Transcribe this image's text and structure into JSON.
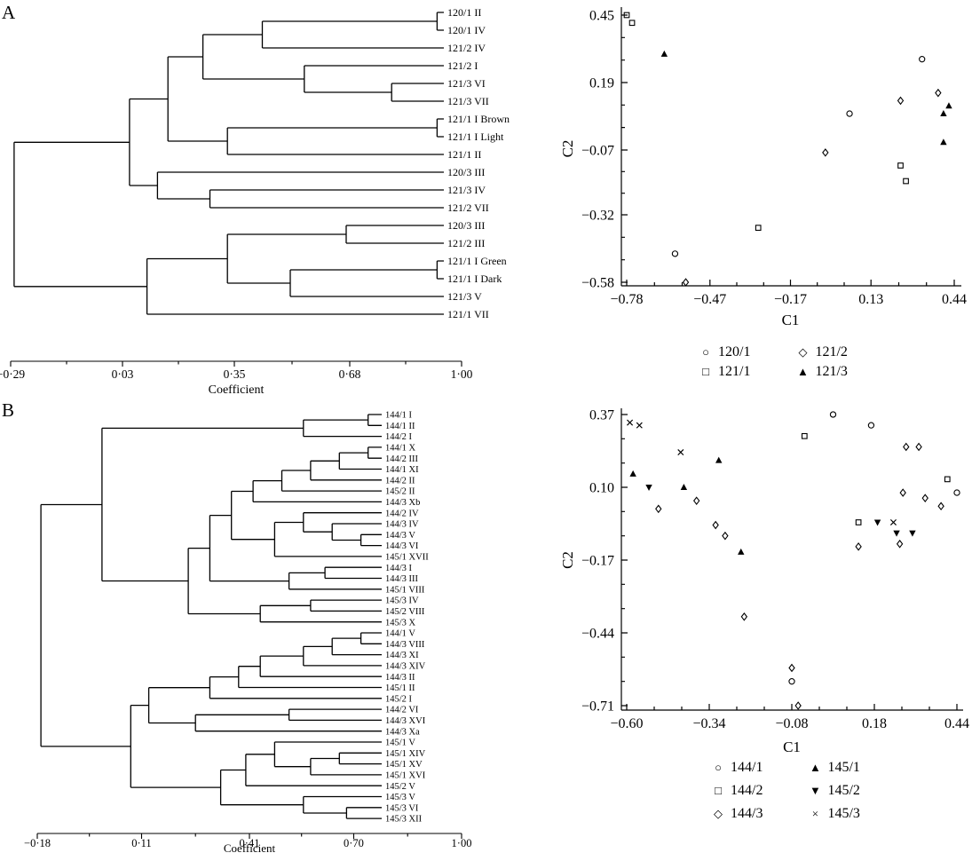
{
  "panels": {
    "A": {
      "letter": "A"
    },
    "B": {
      "letter": "B"
    }
  },
  "chart_data": [
    {
      "id": "dendrogram-a",
      "type": "dendrogram",
      "panel": "A",
      "xlabel": "Coefficient",
      "xlim": [
        -0.29,
        1.0
      ],
      "axis_ticks": [
        {
          "value": -0.29,
          "label": "−0·29"
        },
        {
          "value": 0.03,
          "label": "0·03"
        },
        {
          "value": 0.35,
          "label": "0·35"
        },
        {
          "value": 0.68,
          "label": "0·68"
        },
        {
          "value": 1.0,
          "label": "1·00"
        }
      ],
      "tree": {
        "h": -0.28,
        "c": [
          {
            "h": 0.05,
            "c": [
              {
                "h": 0.16,
                "c": [
                  {
                    "h": 0.26,
                    "c": [
                      {
                        "h": 0.43,
                        "c": [
                          {
                            "h": 0.93,
                            "c": [
                              "120/1 II",
                              "120/1 IV"
                            ]
                          },
                          "121/2 IV"
                        ]
                      },
                      {
                        "h": 0.55,
                        "c": [
                          "121/2 I",
                          {
                            "h": 0.8,
                            "c": [
                              "121/3 VI",
                              "121/3 VII"
                            ]
                          }
                        ]
                      }
                    ]
                  },
                  {
                    "h": 0.33,
                    "c": [
                      {
                        "h": 0.93,
                        "c": [
                          "121/1 I Brown",
                          "121/1 I Light"
                        ]
                      },
                      "121/1 II"
                    ]
                  }
                ]
              },
              {
                "h": 0.13,
                "c": [
                  "120/3 III",
                  {
                    "h": 0.28,
                    "c": [
                      "121/3 IV",
                      "121/2 VII"
                    ]
                  }
                ]
              }
            ]
          },
          {
            "h": 0.1,
            "c": [
              {
                "h": 0.33,
                "c": [
                  {
                    "h": 0.67,
                    "c": [
                      "120/3 III",
                      "121/2 III"
                    ]
                  },
                  {
                    "h": 0.51,
                    "c": [
                      {
                        "h": 0.93,
                        "c": [
                          "121/1 I Green",
                          "121/1 I Dark"
                        ]
                      },
                      "121/3 V"
                    ]
                  }
                ]
              },
              "121/1 VII"
            ]
          }
        ]
      }
    },
    {
      "id": "scatter-a",
      "type": "scatter",
      "panel": "A",
      "xlabel": "C1",
      "ylabel": "C2",
      "xlim": [
        -0.78,
        0.44
      ],
      "ylim": [
        -0.58,
        0.45
      ],
      "x_ticks": [
        {
          "value": -0.78,
          "label": "−0.78"
        },
        {
          "value": -0.47,
          "label": "−0.47"
        },
        {
          "value": -0.17,
          "label": "−0.17"
        },
        {
          "value": 0.13,
          "label": "0.13"
        },
        {
          "value": 0.44,
          "label": "0.44"
        }
      ],
      "y_ticks": [
        {
          "value": 0.45,
          "label": "0.45"
        },
        {
          "value": 0.19,
          "label": "0.19"
        },
        {
          "value": -0.07,
          "label": "−0.07"
        },
        {
          "value": -0.32,
          "label": "−0.32"
        },
        {
          "value": -0.58,
          "label": "−0.58"
        }
      ],
      "series": [
        {
          "name": "120/1",
          "marker": "circle",
          "points": [
            [
              0.32,
              0.28
            ],
            [
              0.05,
              0.07
            ],
            [
              -0.6,
              -0.47
            ]
          ]
        },
        {
          "name": "121/1",
          "marker": "square",
          "points": [
            [
              -0.78,
              0.45
            ],
            [
              -0.76,
              0.42
            ],
            [
              0.24,
              -0.13
            ],
            [
              0.26,
              -0.19
            ],
            [
              -0.29,
              -0.37
            ]
          ]
        },
        {
          "name": "121/2",
          "marker": "diamond",
          "points": [
            [
              0.38,
              0.15
            ],
            [
              0.24,
              0.12
            ],
            [
              -0.04,
              -0.08
            ],
            [
              -0.56,
              -0.58
            ]
          ]
        },
        {
          "name": "121/3",
          "marker": "triangle-up",
          "points": [
            [
              -0.64,
              0.3
            ],
            [
              0.42,
              0.1
            ],
            [
              0.4,
              0.07
            ],
            [
              0.4,
              -0.04
            ]
          ]
        }
      ],
      "legend": [
        {
          "marker": "circle",
          "label": "120/1"
        },
        {
          "marker": "diamond",
          "label": "121/2"
        },
        {
          "marker": "square",
          "label": "121/1"
        },
        {
          "marker": "triangle-up",
          "label": "121/3"
        }
      ]
    },
    {
      "id": "dendrogram-b",
      "type": "dendrogram",
      "panel": "B",
      "xlabel": "Coefficient",
      "xlim": [
        -0.18,
        1.0
      ],
      "axis_ticks": [
        {
          "value": -0.18,
          "label": "−0·18"
        },
        {
          "value": 0.11,
          "label": "0·11"
        },
        {
          "value": 0.41,
          "label": "0·41"
        },
        {
          "value": 0.7,
          "label": "0·70"
        },
        {
          "value": 1.0,
          "label": "1·00"
        }
      ],
      "tree": {
        "h": -0.17,
        "c": [
          {
            "h": 0.0,
            "c": [
              {
                "h": 0.56,
                "c": [
                  {
                    "h": 0.74,
                    "c": [
                      "144/1 I",
                      "144/1 II"
                    ]
                  },
                  "144/2 I"
                ]
              },
              {
                "h": 0.24,
                "c": [
                  {
                    "h": 0.3,
                    "c": [
                      {
                        "h": 0.36,
                        "c": [
                          {
                            "h": 0.42,
                            "c": [
                              {
                                "h": 0.5,
                                "c": [
                                  {
                                    "h": 0.58,
                                    "c": [
                                      {
                                        "h": 0.66,
                                        "c": [
                                          {
                                            "h": 0.74,
                                            "c": [
                                              "144/1 X",
                                              "144/2 III"
                                            ]
                                          },
                                          "144/1 XI"
                                        ]
                                      },
                                      "144/2 II"
                                    ]
                                  },
                                  "145/2 II"
                                ]
                              },
                              "144/3 Xb"
                            ]
                          },
                          {
                            "h": 0.48,
                            "c": [
                              {
                                "h": 0.56,
                                "c": [
                                  "144/2 IV",
                                  {
                                    "h": 0.64,
                                    "c": [
                                      "144/3 IV",
                                      {
                                        "h": 0.72,
                                        "c": [
                                          "144/3 V",
                                          "144/3 VI"
                                        ]
                                      }
                                    ]
                                  }
                                ]
                              },
                              "145/1 XVII"
                            ]
                          }
                        ]
                      },
                      {
                        "h": 0.52,
                        "c": [
                          {
                            "h": 0.62,
                            "c": [
                              "144/3 I",
                              "144/3 III"
                            ]
                          },
                          "145/1 VIII"
                        ]
                      }
                    ]
                  },
                  {
                    "h": 0.44,
                    "c": [
                      {
                        "h": 0.58,
                        "c": [
                          "145/3 IV",
                          "145/2 VIII"
                        ]
                      },
                      "145/3 X"
                    ]
                  }
                ]
              }
            ]
          },
          {
            "h": 0.08,
            "c": [
              {
                "h": 0.13,
                "c": [
                  {
                    "h": 0.3,
                    "c": [
                      {
                        "h": 0.38,
                        "c": [
                          {
                            "h": 0.44,
                            "c": [
                              {
                                "h": 0.56,
                                "c": [
                                  {
                                    "h": 0.64,
                                    "c": [
                                      {
                                        "h": 0.72,
                                        "c": [
                                          "144/1 V",
                                          "144/3 VIII"
                                        ]
                                      },
                                      "144/3 XI"
                                    ]
                                  },
                                  "144/3 XIV"
                                ]
                              },
                              "144/3 II"
                            ]
                          },
                          "145/1 II"
                        ]
                      },
                      "145/2 I"
                    ]
                  },
                  {
                    "h": 0.26,
                    "c": [
                      {
                        "h": 0.52,
                        "c": [
                          "144/2 VI",
                          "144/3 XVI"
                        ]
                      },
                      "144/3 Xa"
                    ]
                  }
                ]
              },
              {
                "h": 0.33,
                "c": [
                  {
                    "h": 0.4,
                    "c": [
                      {
                        "h": 0.48,
                        "c": [
                          "145/1 V",
                          {
                            "h": 0.58,
                            "c": [
                              {
                                "h": 0.66,
                                "c": [
                                  "145/1 XIV",
                                  "145/1 XV"
                                ]
                              },
                              "145/1 XVI"
                            ]
                          }
                        ]
                      },
                      "145/2 V"
                    ]
                  },
                  {
                    "h": 0.56,
                    "c": [
                      "145/3 V",
                      {
                        "h": 0.68,
                        "c": [
                          "145/3 VI",
                          "145/3 XII"
                        ]
                      }
                    ]
                  }
                ]
              }
            ]
          }
        ]
      }
    },
    {
      "id": "scatter-b",
      "type": "scatter",
      "panel": "B",
      "xlabel": "C1",
      "ylabel": "C2",
      "xlim": [
        -0.6,
        0.44
      ],
      "ylim": [
        -0.71,
        0.37
      ],
      "x_ticks": [
        {
          "value": -0.6,
          "label": "−0.60"
        },
        {
          "value": -0.34,
          "label": "−0.34"
        },
        {
          "value": -0.08,
          "label": "−0.08"
        },
        {
          "value": 0.18,
          "label": "0.18"
        },
        {
          "value": 0.44,
          "label": "0.44"
        }
      ],
      "y_ticks": [
        {
          "value": 0.37,
          "label": "0.37"
        },
        {
          "value": 0.1,
          "label": "0.10"
        },
        {
          "value": -0.17,
          "label": "−0.17"
        },
        {
          "value": -0.44,
          "label": "−0.44"
        },
        {
          "value": -0.71,
          "label": "−0.71"
        }
      ],
      "series": [
        {
          "name": "144/1",
          "marker": "circle",
          "points": [
            [
              0.05,
              0.37
            ],
            [
              0.17,
              0.33
            ],
            [
              0.44,
              0.08
            ],
            [
              -0.08,
              -0.62
            ]
          ]
        },
        {
          "name": "144/2",
          "marker": "square",
          "points": [
            [
              -0.04,
              0.29
            ],
            [
              0.41,
              0.13
            ],
            [
              0.13,
              -0.03
            ]
          ]
        },
        {
          "name": "144/3",
          "marker": "diamond",
          "points": [
            [
              0.28,
              0.25
            ],
            [
              0.32,
              0.25
            ],
            [
              -0.38,
              0.05
            ],
            [
              0.27,
              0.08
            ],
            [
              0.34,
              0.06
            ],
            [
              0.39,
              0.03
            ],
            [
              -0.5,
              0.02
            ],
            [
              -0.32,
              -0.04
            ],
            [
              -0.29,
              -0.08
            ],
            [
              0.13,
              -0.12
            ],
            [
              0.26,
              -0.11
            ],
            [
              -0.23,
              -0.38
            ],
            [
              -0.08,
              -0.57
            ],
            [
              -0.06,
              -0.71
            ]
          ]
        },
        {
          "name": "145/1",
          "marker": "triangle-up",
          "points": [
            [
              -0.31,
              0.2
            ],
            [
              -0.58,
              0.15
            ],
            [
              -0.42,
              0.1
            ],
            [
              -0.24,
              -0.14
            ]
          ]
        },
        {
          "name": "145/2",
          "marker": "triangle-down",
          "points": [
            [
              -0.53,
              0.1
            ],
            [
              0.19,
              -0.03
            ],
            [
              0.25,
              -0.07
            ],
            [
              0.3,
              -0.07
            ]
          ]
        },
        {
          "name": "145/3",
          "marker": "x",
          "points": [
            [
              -0.59,
              0.34
            ],
            [
              -0.56,
              0.33
            ],
            [
              -0.43,
              0.23
            ],
            [
              0.24,
              -0.03
            ]
          ]
        }
      ],
      "legend": [
        {
          "marker": "circle",
          "label": "144/1"
        },
        {
          "marker": "triangle-up",
          "label": "145/1"
        },
        {
          "marker": "square",
          "label": "144/2"
        },
        {
          "marker": "triangle-down",
          "label": "145/2"
        },
        {
          "marker": "diamond",
          "label": "144/3"
        },
        {
          "marker": "x",
          "label": "145/3"
        }
      ]
    }
  ]
}
